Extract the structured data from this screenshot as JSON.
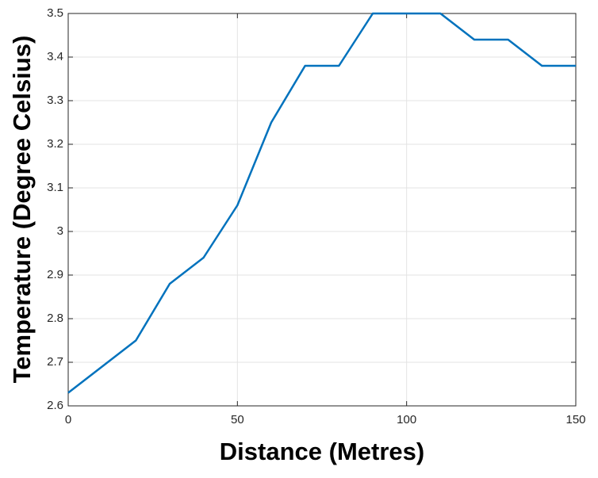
{
  "chart_data": {
    "type": "line",
    "x_label": "Distance (Metres)",
    "y_label": "Temperature (Degree Celsius)",
    "x": [
      0,
      10,
      20,
      30,
      40,
      50,
      60,
      70,
      80,
      90,
      100,
      110,
      120,
      130,
      140,
      150
    ],
    "series": [
      {
        "color": "#0072bd",
        "values": [
          2.63,
          2.69,
          2.75,
          2.88,
          2.94,
          3.06,
          3.25,
          3.38,
          3.38,
          3.5,
          3.5,
          3.5,
          3.44,
          3.44,
          3.38,
          3.38
        ]
      }
    ],
    "xlim": [
      0,
      150
    ],
    "xticks": [
      0,
      50,
      100,
      150
    ],
    "ylim": [
      2.6,
      3.5
    ],
    "yticks": [
      2.6,
      2.7,
      2.8,
      2.9,
      3,
      3.1,
      3.2,
      3.3,
      3.4,
      3.5
    ],
    "grid": true
  }
}
